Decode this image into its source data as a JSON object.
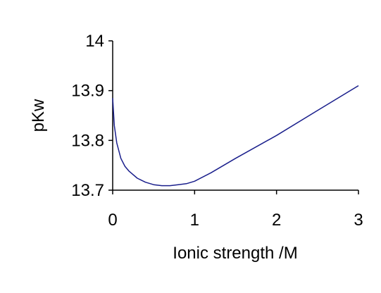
{
  "chart_data": {
    "type": "line",
    "title": "",
    "xlabel": "Ionic strength /M",
    "ylabel": "pKw",
    "xlim": [
      0,
      3
    ],
    "ylim": [
      13.7,
      14.0
    ],
    "x_ticks": [
      0,
      1,
      2,
      3
    ],
    "y_ticks": [
      13.7,
      13.8,
      13.9,
      14.0
    ],
    "x_tick_labels": [
      "0",
      "1",
      "2",
      "3"
    ],
    "y_tick_labels": [
      "13.7",
      "13.8",
      "13.9",
      "14"
    ],
    "grid": false,
    "legend": "none",
    "series": [
      {
        "color": "#1a1f8c",
        "x": [
          0.0,
          0.02,
          0.05,
          0.1,
          0.15,
          0.2,
          0.3,
          0.4,
          0.5,
          0.6,
          0.7,
          0.8,
          0.9,
          1.0,
          1.2,
          1.5,
          2.0,
          2.5,
          3.0
        ],
        "y": [
          13.885,
          13.83,
          13.795,
          13.764,
          13.748,
          13.738,
          13.724,
          13.716,
          13.711,
          13.709,
          13.709,
          13.711,
          13.713,
          13.718,
          13.735,
          13.764,
          13.81,
          13.86,
          13.91
        ]
      }
    ]
  }
}
